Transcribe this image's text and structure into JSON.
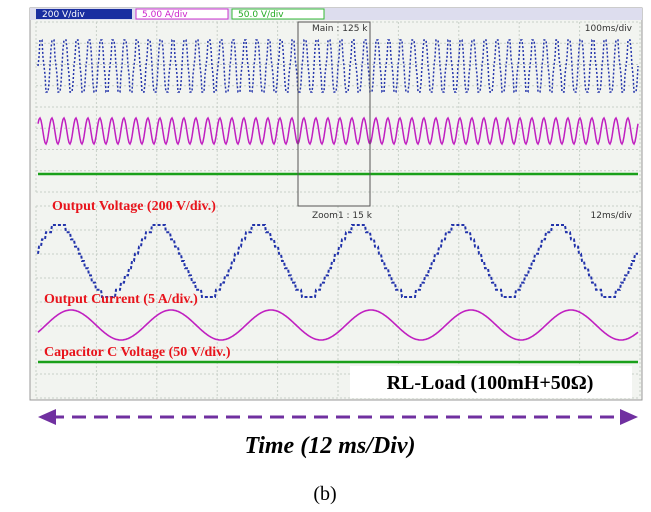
{
  "header": {
    "ch1": "200 V/div",
    "ch2": "5.00 A/div",
    "ch3": "50.0 V/div"
  },
  "upper_panel": {
    "window": "Main : 125 k",
    "timebase": "100ms/div"
  },
  "lower_panel": {
    "window": "Zoom1 : 15 k",
    "timebase": "12ms/div"
  },
  "labels": {
    "voltage": "Output Voltage (200 V/div.)",
    "current": "Output Current (5 A/div.)",
    "capacitor": "Capacitor C Voltage (50 V/div.)",
    "load": "RL-Load (100mH+50Ω)"
  },
  "axis": {
    "time": "Time (12 ms/Div)"
  },
  "caption": "(b)"
}
